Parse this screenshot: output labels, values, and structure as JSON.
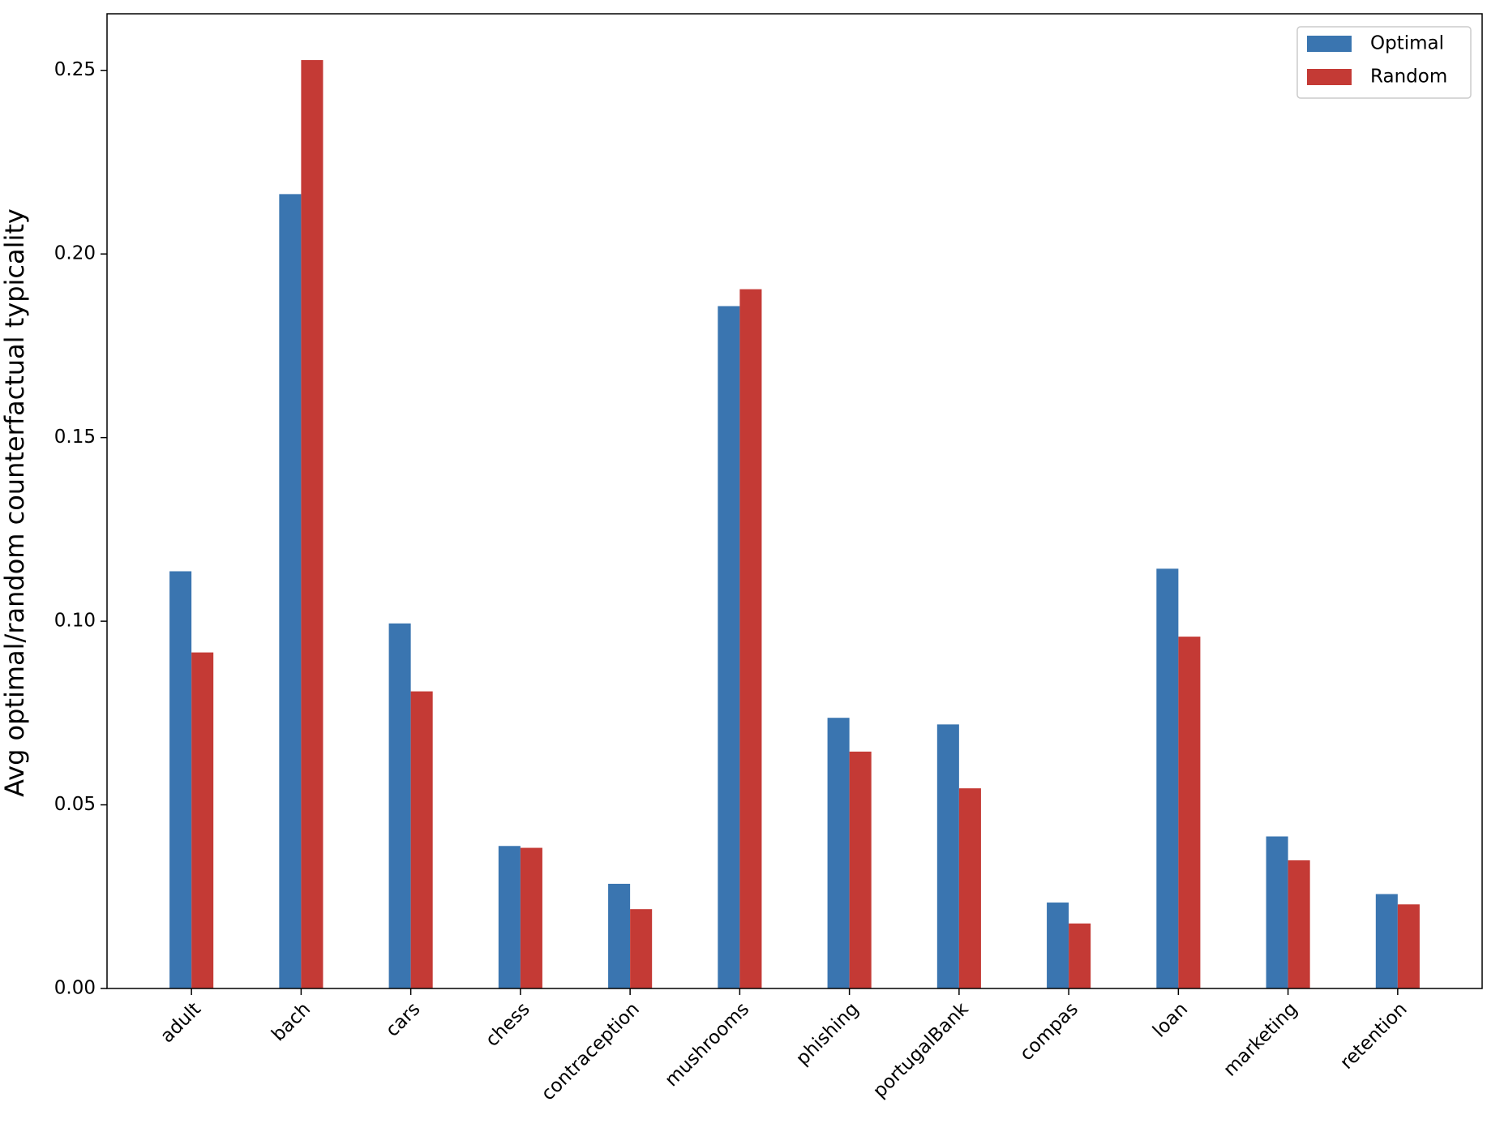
{
  "chart_data": {
    "type": "bar",
    "ylabel": "Avg optimal/random counterfactual typicality",
    "categories": [
      "adult",
      "bach",
      "cars",
      "chess",
      "contraception",
      "mushrooms",
      "phishing",
      "portugalBank",
      "compas",
      "loan",
      "marketing",
      "retention"
    ],
    "series": [
      {
        "name": "Optimal",
        "color": "#3a75b0",
        "values": [
          0.1136,
          0.2163,
          0.0994,
          0.0388,
          0.0285,
          0.1858,
          0.0737,
          0.0719,
          0.0234,
          0.1143,
          0.0414,
          0.0257
        ]
      },
      {
        "name": "Random",
        "color": "#c43a35",
        "values": [
          0.0915,
          0.2528,
          0.0809,
          0.0383,
          0.0216,
          0.1904,
          0.0645,
          0.0545,
          0.0177,
          0.0958,
          0.0349,
          0.0229
        ]
      }
    ],
    "ylim": [
      0,
      0.2654
    ],
    "yticks": [
      {
        "value": 0,
        "label": "0.00"
      },
      {
        "value": 0.05,
        "label": "0.05"
      },
      {
        "value": 0.1,
        "label": "0.10"
      },
      {
        "value": 0.15,
        "label": "0.15"
      },
      {
        "value": 0.2,
        "label": "0.20"
      },
      {
        "value": 0.25,
        "label": "0.25"
      }
    ],
    "legend": "upper right",
    "grid": false
  }
}
